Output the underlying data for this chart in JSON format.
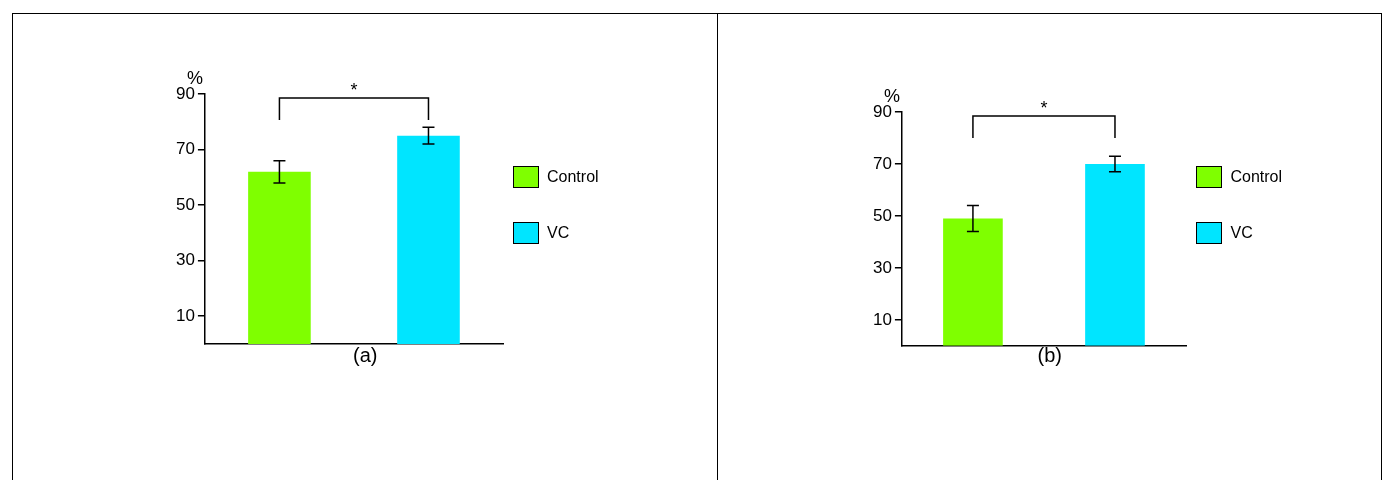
{
  "chart_data": [
    {
      "type": "bar",
      "title": "(a)",
      "ylabel": "%",
      "categories": [
        null,
        null
      ],
      "series": [
        {
          "name": "Control",
          "color": "#7fff00",
          "values": [
            62,
            null
          ],
          "errors": [
            4,
            null
          ]
        },
        {
          "name": "VC",
          "color": "#00e5ff",
          "values": [
            null,
            75
          ],
          "errors": [
            null,
            3
          ]
        }
      ],
      "ylim": [
        0,
        90
      ],
      "yticks": [
        10,
        30,
        50,
        70,
        90
      ],
      "annotations": [
        "*"
      ],
      "grid": false,
      "legend": "right",
      "tick_labels": "y"
    },
    {
      "type": "bar",
      "title": "(b)",
      "ylabel": "%",
      "categories": [
        null,
        null
      ],
      "series": [
        {
          "name": "Control",
          "color": "#7fff00",
          "values": [
            49,
            null
          ],
          "errors": [
            5,
            null
          ]
        },
        {
          "name": "VC",
          "color": "#00e5ff",
          "values": [
            null,
            70
          ],
          "errors": [
            null,
            3
          ]
        }
      ],
      "ylim": [
        0,
        90
      ],
      "yticks": [
        10,
        30,
        50,
        70,
        90
      ],
      "annotations": [
        "*"
      ],
      "grid": false,
      "legend": "right",
      "tick_labels": "y"
    }
  ]
}
